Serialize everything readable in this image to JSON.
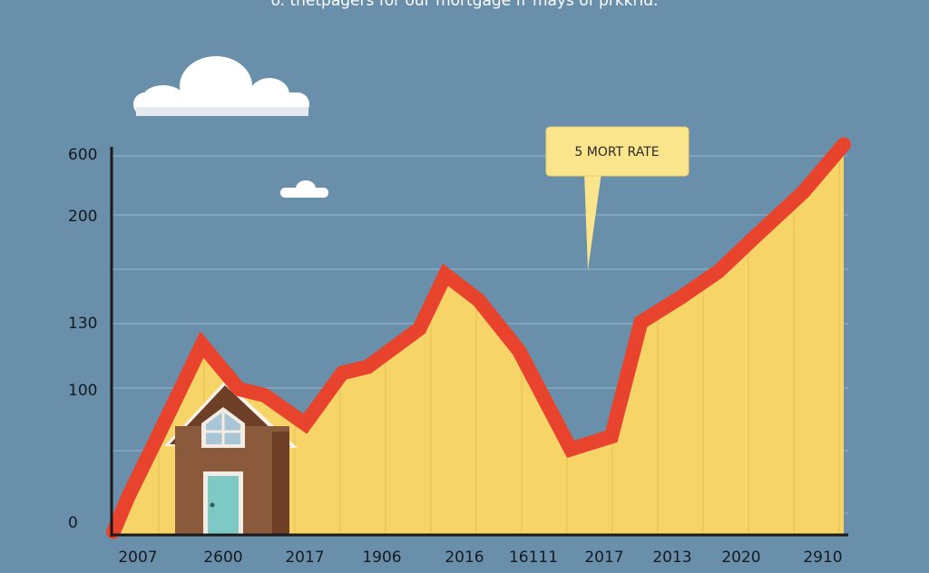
{
  "header": {
    "caption": "o. thetpagers for our mortgage fr mays of prkkrid."
  },
  "colors": {
    "background": "#6a8fab",
    "area_fill": "#f6d468",
    "line": "#e8432d",
    "house_wall": "#8b5a3c",
    "house_roof": "#6e3f27",
    "door": "#7ec8c5",
    "callout_bg": "#fbe58c"
  },
  "icons": [
    "cloud-icon",
    "house-icon"
  ],
  "chart_data": {
    "type": "area",
    "title": "",
    "annotation": "5 MORT RATE",
    "x_tick_labels": [
      "2007",
      "2600",
      "2017",
      "1906",
      "2016",
      "16111",
      "2017",
      "2013",
      "2020",
      "2910"
    ],
    "y_tick_labels": [
      "600",
      "200",
      "130",
      "100",
      "0"
    ],
    "ylim": [
      0,
      600
    ],
    "grid": true,
    "series": [
      {
        "values": [
          5,
          60,
          155,
          300,
          230,
          220,
          175,
          255,
          265,
          325,
          410,
          370,
          290,
          135,
          155,
          335,
          375,
          415,
          470,
          540,
          615
        ],
        "x": [
          0,
          0.2,
          0.6,
          1.2,
          1.7,
          2.05,
          2.6,
          3.1,
          3.45,
          4.15,
          4.5,
          4.95,
          5.5,
          6.2,
          6.75,
          7.15,
          7.7,
          8.2,
          8.7,
          9.35,
          9.9
        ]
      }
    ]
  }
}
